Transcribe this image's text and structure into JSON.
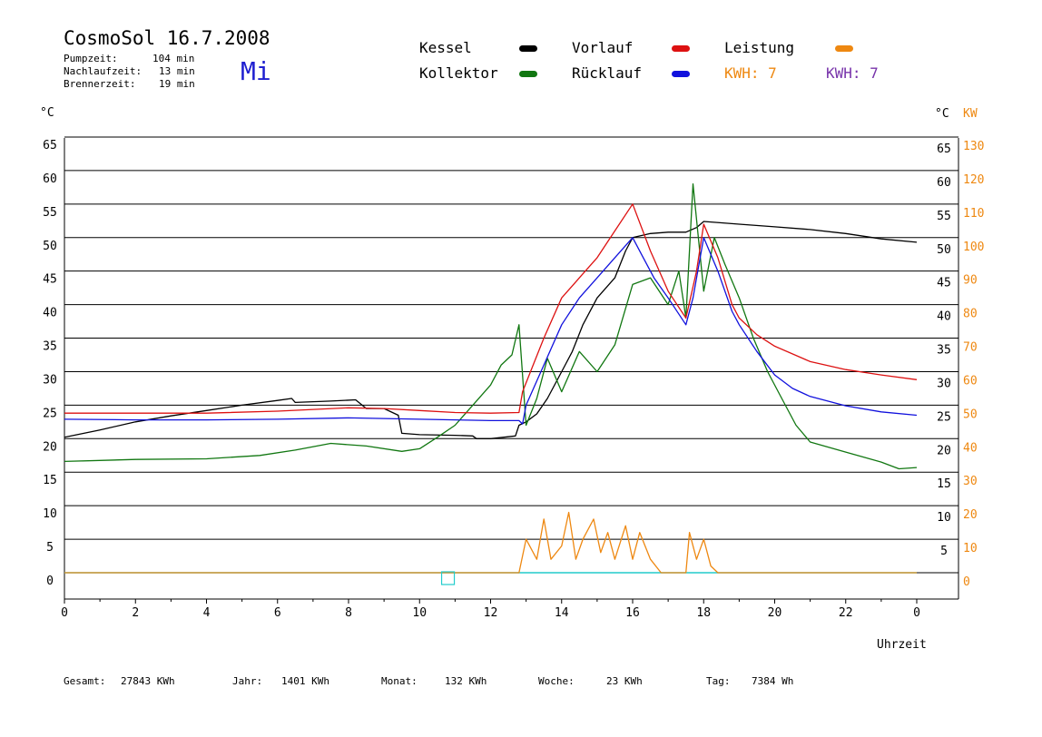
{
  "header": {
    "title": "CosmoSol 16.7.2008",
    "day": "Mi",
    "stats": [
      {
        "label": "Pumpzeit:",
        "value": "104 min"
      },
      {
        "label": "Nachlaufzeit:",
        "value": "13 min"
      },
      {
        "label": "Brennerzeit:",
        "value": "19 min"
      }
    ]
  },
  "legend": {
    "kessel": "Kessel",
    "kollektor": "Kollektor",
    "vorlauf": "Vorlauf",
    "ruecklauf": "Rücklauf",
    "leistung": "Leistung",
    "kwh_orange": "KWH: 7",
    "kwh_purple": "KWH: 7"
  },
  "units": {
    "left_temp": "°C",
    "right_temp": "°C",
    "right_power": "KW"
  },
  "footer": {
    "gesamt_label": "Gesamt:",
    "gesamt_value": "27843 KWh",
    "jahr_label": "Jahr:",
    "jahr_value": "1401 KWh",
    "monat_label": "Monat:",
    "monat_value": "132 KWh",
    "woche_label": "Woche:",
    "woche_value": "23 KWh",
    "tag_label": "Tag:",
    "tag_value": "7384 Wh"
  },
  "colors": {
    "kessel": "#000000",
    "kollektor": "#117711",
    "vorlauf": "#dd1111",
    "ruecklauf": "#1111dd",
    "leistung": "#ee8811",
    "kwh_purple": "#7733aa",
    "baseline": "#22cccc"
  },
  "chart_data": {
    "type": "line",
    "xlabel": "Uhrzeit",
    "x_ticks": [
      "0",
      "2",
      "4",
      "6",
      "8",
      "10",
      "12",
      "14",
      "16",
      "18",
      "20",
      "22",
      "0"
    ],
    "xlim": [
      0,
      24
    ],
    "y_left_ticks": [
      0,
      5,
      10,
      15,
      20,
      25,
      30,
      35,
      40,
      45,
      50,
      55,
      60,
      65
    ],
    "y_right_temp_ticks": [
      5,
      10,
      15,
      20,
      25,
      30,
      35,
      40,
      45,
      50,
      55,
      60,
      65
    ],
    "y_right_power_ticks": [
      0,
      10,
      20,
      30,
      40,
      50,
      60,
      70,
      80,
      90,
      100,
      110,
      120,
      130
    ],
    "ylim": [
      0,
      65
    ],
    "series": [
      {
        "name": "Kessel",
        "key": "kessel",
        "points": [
          [
            0,
            20.2
          ],
          [
            1,
            21.3
          ],
          [
            2,
            22.5
          ],
          [
            3,
            23.4
          ],
          [
            4,
            24.2
          ],
          [
            5,
            25
          ],
          [
            6,
            25.7
          ],
          [
            6.4,
            26
          ],
          [
            6.5,
            25.4
          ],
          [
            7.5,
            25.6
          ],
          [
            8.2,
            25.8
          ],
          [
            8.5,
            24.5
          ],
          [
            9,
            24.5
          ],
          [
            9.4,
            23.5
          ],
          [
            9.5,
            20.8
          ],
          [
            10,
            20.6
          ],
          [
            11,
            20.5
          ],
          [
            11.5,
            20.4
          ],
          [
            11.6,
            20
          ],
          [
            12,
            20
          ],
          [
            12.7,
            20.4
          ],
          [
            12.8,
            22
          ],
          [
            13,
            22.5
          ],
          [
            13.3,
            23.7
          ],
          [
            13.6,
            26
          ],
          [
            14,
            30
          ],
          [
            14.3,
            33
          ],
          [
            14.6,
            37
          ],
          [
            15,
            41
          ],
          [
            15.5,
            44
          ],
          [
            15.8,
            48
          ],
          [
            16,
            50
          ],
          [
            16.5,
            50.6
          ],
          [
            17,
            50.8
          ],
          [
            17.5,
            50.8
          ],
          [
            17.8,
            51.5
          ],
          [
            18,
            52.4
          ],
          [
            19,
            52
          ],
          [
            20,
            51.6
          ],
          [
            21,
            51.2
          ],
          [
            22,
            50.6
          ],
          [
            23,
            49.8
          ],
          [
            24,
            49.3
          ]
        ]
      },
      {
        "name": "Kollektor",
        "key": "kollektor",
        "points": [
          [
            0,
            16.6
          ],
          [
            2,
            16.9
          ],
          [
            4,
            17
          ],
          [
            5.5,
            17.5
          ],
          [
            6.5,
            18.3
          ],
          [
            7.5,
            19.3
          ],
          [
            8.5,
            18.9
          ],
          [
            9.5,
            18.1
          ],
          [
            10,
            18.5
          ],
          [
            10.5,
            20.2
          ],
          [
            11,
            22
          ],
          [
            11.5,
            25
          ],
          [
            12,
            28
          ],
          [
            12.3,
            31
          ],
          [
            12.6,
            32.5
          ],
          [
            12.8,
            37
          ],
          [
            13,
            22
          ],
          [
            13.3,
            26
          ],
          [
            13.6,
            32
          ],
          [
            14,
            27
          ],
          [
            14.5,
            33
          ],
          [
            15,
            30
          ],
          [
            15.5,
            34
          ],
          [
            16,
            43
          ],
          [
            16.5,
            44
          ],
          [
            17,
            40
          ],
          [
            17.3,
            45
          ],
          [
            17.5,
            38
          ],
          [
            17.7,
            58
          ],
          [
            18,
            42
          ],
          [
            18.3,
            50
          ],
          [
            18.6,
            46
          ],
          [
            19,
            41
          ],
          [
            19.4,
            35
          ],
          [
            19.8,
            30
          ],
          [
            20.2,
            26
          ],
          [
            20.6,
            22
          ],
          [
            21,
            19.5
          ],
          [
            22,
            18
          ],
          [
            23,
            16.5
          ],
          [
            23.5,
            15.5
          ],
          [
            24,
            15.7
          ]
        ]
      },
      {
        "name": "Vorlauf",
        "key": "vorlauf",
        "points": [
          [
            0,
            23.8
          ],
          [
            2,
            23.8
          ],
          [
            4,
            23.8
          ],
          [
            6,
            24.1
          ],
          [
            8,
            24.6
          ],
          [
            9,
            24.5
          ],
          [
            10,
            24.2
          ],
          [
            11,
            23.9
          ],
          [
            12,
            23.8
          ],
          [
            12.8,
            23.9
          ],
          [
            12.9,
            27
          ],
          [
            13.2,
            31
          ],
          [
            13.5,
            35
          ],
          [
            14,
            41
          ],
          [
            14.5,
            44
          ],
          [
            15,
            47
          ],
          [
            15.5,
            51
          ],
          [
            16,
            55
          ],
          [
            16.5,
            48
          ],
          [
            17,
            42
          ],
          [
            17.5,
            38
          ],
          [
            17.8,
            45
          ],
          [
            18,
            52
          ],
          [
            18.4,
            47
          ],
          [
            18.8,
            40
          ],
          [
            19,
            38
          ],
          [
            19.5,
            35.5
          ],
          [
            20,
            33.8
          ],
          [
            21,
            31.5
          ],
          [
            22,
            30.3
          ],
          [
            23,
            29.5
          ],
          [
            24,
            28.8
          ]
        ]
      },
      {
        "name": "Rücklauf",
        "key": "ruecklauf",
        "points": [
          [
            0,
            22.9
          ],
          [
            2,
            22.8
          ],
          [
            4,
            22.8
          ],
          [
            6,
            22.9
          ],
          [
            8,
            23.1
          ],
          [
            9,
            23
          ],
          [
            10,
            22.9
          ],
          [
            11,
            22.8
          ],
          [
            12,
            22.7
          ],
          [
            12.8,
            22.7
          ],
          [
            12.9,
            22.2
          ],
          [
            13,
            25
          ],
          [
            13.5,
            31
          ],
          [
            14,
            37
          ],
          [
            14.5,
            41
          ],
          [
            15,
            44
          ],
          [
            15.5,
            47
          ],
          [
            16,
            50
          ],
          [
            16.3,
            47
          ],
          [
            16.6,
            44
          ],
          [
            17,
            41
          ],
          [
            17.5,
            37
          ],
          [
            17.7,
            41
          ],
          [
            18,
            50
          ],
          [
            18.4,
            45
          ],
          [
            18.8,
            39
          ],
          [
            19,
            37
          ],
          [
            19.5,
            33
          ],
          [
            20,
            29.5
          ],
          [
            20.5,
            27.5
          ],
          [
            21,
            26.3
          ],
          [
            22,
            24.9
          ],
          [
            23,
            24
          ],
          [
            24,
            23.5
          ]
        ]
      },
      {
        "name": "Leistung",
        "key": "leistung",
        "points": [
          [
            0,
            0
          ],
          [
            12.8,
            0
          ],
          [
            13,
            5
          ],
          [
            13.3,
            2
          ],
          [
            13.5,
            8
          ],
          [
            13.7,
            2
          ],
          [
            14,
            4
          ],
          [
            14.2,
            9
          ],
          [
            14.4,
            2
          ],
          [
            14.6,
            5
          ],
          [
            14.9,
            8
          ],
          [
            15.1,
            3
          ],
          [
            15.3,
            6
          ],
          [
            15.5,
            2
          ],
          [
            15.8,
            7
          ],
          [
            16,
            2
          ],
          [
            16.2,
            6
          ],
          [
            16.5,
            2
          ],
          [
            16.8,
            0
          ],
          [
            17.5,
            0
          ],
          [
            17.6,
            6
          ],
          [
            17.8,
            2
          ],
          [
            18,
            5
          ],
          [
            18.2,
            1
          ],
          [
            18.4,
            0
          ],
          [
            24,
            0
          ]
        ]
      }
    ]
  }
}
